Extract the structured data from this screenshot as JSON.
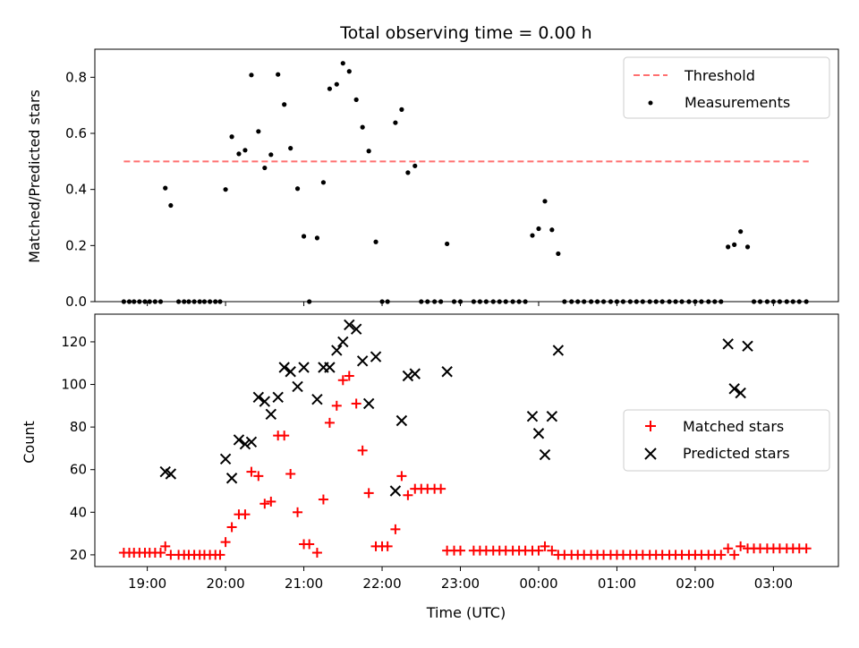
{
  "chart_data": [
    {
      "type": "scatter",
      "title": "Total observing time = 0.00 h",
      "xlabel": "",
      "ylabel": "Matched/Predicted stars",
      "xlim": [
        18.33,
        27.83
      ],
      "ylim": [
        0,
        0.9
      ],
      "yticks": [
        0.0,
        0.2,
        0.4,
        0.6,
        0.8
      ],
      "ytick_labels": [
        "0.0",
        "0.2",
        "0.4",
        "0.6",
        "0.8"
      ],
      "xtick_positions": [
        19,
        20,
        21,
        22,
        23,
        24,
        25,
        26,
        27
      ],
      "show_xtick_labels": false,
      "legend_position": "top-right",
      "threshold": {
        "name": "Threshold",
        "value": 0.5,
        "x_range": [
          18.7,
          27.45
        ],
        "color": "#ff7070"
      },
      "measurements": {
        "name": "Measurements",
        "color": "#000000",
        "x": [
          18.7,
          18.77,
          18.83,
          18.9,
          18.97,
          19.03,
          19.1,
          19.17,
          19.23,
          19.3,
          19.4,
          19.47,
          19.53,
          19.6,
          19.67,
          19.73,
          19.8,
          19.87,
          19.93,
          20.0,
          20.08,
          20.17,
          20.25,
          20.33,
          20.42,
          20.5,
          20.58,
          20.67,
          20.75,
          20.83,
          20.92,
          21.0,
          21.07,
          21.17,
          21.25,
          21.33,
          21.42,
          21.5,
          21.58,
          21.67,
          21.75,
          21.83,
          21.92,
          22.0,
          22.07,
          22.17,
          22.25,
          22.33,
          22.42,
          22.5,
          22.58,
          22.67,
          22.75,
          22.83,
          22.92,
          23.0,
          23.17,
          23.25,
          23.33,
          23.42,
          23.5,
          23.58,
          23.67,
          23.75,
          23.83,
          23.92,
          24.0,
          24.08,
          24.17,
          24.25,
          24.33,
          24.42,
          24.5,
          24.58,
          24.67,
          24.75,
          24.83,
          24.92,
          25.0,
          25.08,
          25.17,
          25.25,
          25.33,
          25.42,
          25.5,
          25.58,
          25.67,
          25.75,
          25.83,
          25.92,
          26.0,
          26.08,
          26.17,
          26.25,
          26.33,
          26.42,
          26.5,
          26.58,
          26.67,
          26.75,
          26.83,
          26.92,
          27.0,
          27.08,
          27.17,
          27.25,
          27.33,
          27.42
        ],
        "y": [
          0,
          0,
          0,
          0,
          0,
          0,
          0,
          0,
          0.405,
          0.343,
          0,
          0,
          0,
          0,
          0,
          0,
          0,
          0,
          0,
          0.4,
          0.588,
          0.527,
          0.54,
          0.808,
          0.607,
          0.477,
          0.524,
          0.81,
          0.703,
          0.547,
          0.403,
          0.233,
          0,
          0.227,
          0.425,
          0.759,
          0.775,
          0.85,
          0.821,
          0.72,
          0.622,
          0.537,
          0.213,
          0,
          0,
          0.638,
          0.685,
          0.46,
          0.484,
          0,
          0,
          0,
          0,
          0.206,
          0,
          0,
          0,
          0,
          0,
          0,
          0,
          0,
          0,
          0,
          0,
          0.236,
          0.26,
          0.358,
          0.256,
          0.171,
          0,
          0,
          0,
          0,
          0,
          0,
          0,
          0,
          0,
          0,
          0,
          0,
          0,
          0,
          0,
          0,
          0,
          0,
          0,
          0,
          0,
          0,
          0,
          0,
          0,
          0.195,
          0.203,
          0.25,
          0.195,
          0,
          0,
          0,
          0,
          0,
          0,
          0,
          0,
          0
        ]
      }
    },
    {
      "type": "scatter",
      "title": "",
      "xlabel": "Time (UTC)",
      "ylabel": "Count",
      "xlim": [
        18.33,
        27.83
      ],
      "ylim": [
        14.5,
        133
      ],
      "yticks": [
        20,
        40,
        60,
        80,
        100,
        120
      ],
      "ytick_labels": [
        "20",
        "40",
        "60",
        "80",
        "100",
        "120"
      ],
      "xtick_positions": [
        19,
        20,
        21,
        22,
        23,
        24,
        25,
        26,
        27
      ],
      "xtick_labels": [
        "19:00",
        "20:00",
        "21:00",
        "22:00",
        "23:00",
        "00:00",
        "01:00",
        "02:00",
        "03:00"
      ],
      "legend_position": "center-right",
      "series": [
        {
          "name": "Matched stars",
          "marker": "plus",
          "color": "#ff0000",
          "x": [
            18.7,
            18.77,
            18.83,
            18.9,
            18.97,
            19.03,
            19.1,
            19.17,
            19.23,
            19.3,
            19.4,
            19.47,
            19.53,
            19.6,
            19.67,
            19.73,
            19.8,
            19.87,
            19.93,
            20.0,
            20.08,
            20.17,
            20.25,
            20.33,
            20.42,
            20.5,
            20.58,
            20.67,
            20.75,
            20.83,
            20.92,
            21.0,
            21.07,
            21.17,
            21.25,
            21.33,
            21.42,
            21.5,
            21.58,
            21.67,
            21.75,
            21.83,
            21.92,
            22.0,
            22.07,
            22.17,
            22.25,
            22.33,
            22.42,
            22.5,
            22.58,
            22.67,
            22.75,
            22.83,
            22.92,
            23.0,
            23.17,
            23.25,
            23.33,
            23.42,
            23.5,
            23.58,
            23.67,
            23.75,
            23.83,
            23.92,
            24.0,
            24.08,
            24.17,
            24.25,
            24.33,
            24.42,
            24.5,
            24.58,
            24.67,
            24.75,
            24.83,
            24.92,
            25.0,
            25.08,
            25.17,
            25.25,
            25.33,
            25.42,
            25.5,
            25.58,
            25.67,
            25.75,
            25.83,
            25.92,
            26.0,
            26.08,
            26.17,
            26.25,
            26.33,
            26.42,
            26.5,
            26.58,
            26.67,
            26.75,
            26.83,
            26.92,
            27.0,
            27.08,
            27.17,
            27.25,
            27.33,
            27.42
          ],
          "y": [
            21,
            21,
            21,
            21,
            21,
            21,
            21,
            21,
            24,
            20,
            20,
            20,
            20,
            20,
            20,
            20,
            20,
            20,
            20,
            26,
            33,
            39,
            39,
            59,
            57,
            44,
            45,
            76,
            76,
            58,
            40,
            25,
            25,
            21,
            46,
            82,
            90,
            102,
            104,
            91,
            69,
            49,
            24,
            24,
            24,
            32,
            57,
            48,
            51,
            51,
            51,
            51,
            51,
            22,
            22,
            22,
            22,
            22,
            22,
            22,
            22,
            22,
            22,
            22,
            22,
            22,
            22,
            24,
            22,
            20,
            20,
            20,
            20,
            20,
            20,
            20,
            20,
            20,
            20,
            20,
            20,
            20,
            20,
            20,
            20,
            20,
            20,
            20,
            20,
            20,
            20,
            20,
            20,
            20,
            20,
            23,
            20,
            24,
            23,
            23,
            23,
            23,
            23,
            23,
            23,
            23,
            23,
            23
          ]
        },
        {
          "name": "Predicted stars",
          "marker": "x",
          "color": "#000000",
          "x": [
            19.23,
            19.3,
            20.0,
            20.08,
            20.17,
            20.25,
            20.33,
            20.42,
            20.5,
            20.58,
            20.67,
            20.75,
            20.83,
            20.92,
            21.0,
            21.17,
            21.25,
            21.33,
            21.42,
            21.5,
            21.58,
            21.67,
            21.75,
            21.83,
            21.92,
            22.17,
            22.25,
            22.33,
            22.42,
            22.83,
            23.92,
            24.0,
            24.08,
            24.17,
            24.25,
            26.42,
            26.5,
            26.58,
            26.67
          ],
          "y": [
            59,
            58,
            65,
            56,
            74,
            72,
            73,
            94,
            92,
            86,
            94,
            108,
            106,
            99,
            108,
            93,
            108,
            108,
            116,
            120,
            128,
            126,
            111,
            91,
            113,
            50,
            83,
            104,
            105,
            106,
            85,
            77,
            67,
            85,
            116,
            119,
            98,
            96,
            118
          ]
        }
      ]
    }
  ]
}
